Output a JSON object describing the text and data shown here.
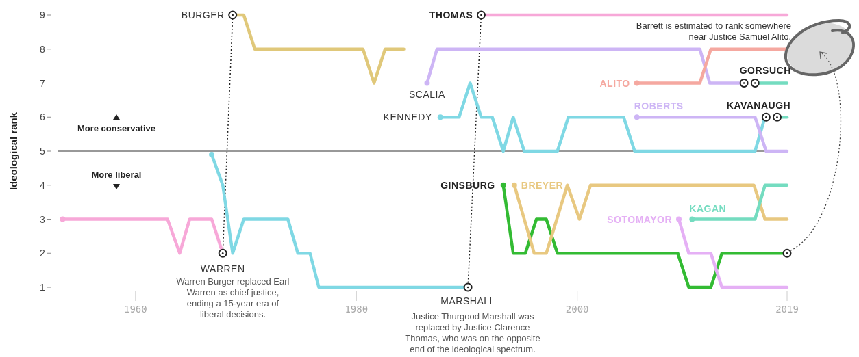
{
  "chart_data": {
    "type": "line",
    "ylabel": "Ideological rank",
    "xlim": [
      1953,
      2019
    ],
    "xticks": [
      1960,
      1980,
      2000,
      2019
    ],
    "ylim": [
      1,
      9
    ],
    "yticks": [
      1,
      2,
      3,
      4,
      5,
      6,
      7,
      8,
      9
    ],
    "grid": false,
    "line_style": "solid",
    "ref_lines": [
      {
        "axis": "y",
        "value": 5,
        "color": "#333333"
      }
    ],
    "annotations": [
      "More conservative",
      "More liberal",
      "Warren Burger replaced Earl Warren as chief justice, ending a 15-year era of liberal decisions.",
      "Justice Thurgood Marshall was replaced by Justice Clarence Thomas, who was on the opposite end of the ideological spectrum.",
      "Barrett is estimated to rank somewhere near Justice Samuel Alito."
    ],
    "series": [
      {
        "name": "WARREN",
        "color": "#f7a8d8",
        "x": [
          1953.4,
          1962.9,
          1964.0,
          1964.9,
          1966.9,
          1967.9
        ],
        "values": [
          3,
          3,
          2,
          3,
          3,
          2
        ]
      },
      {
        "name": "BURGER",
        "color": "#e0c87a",
        "x": [
          1968.8,
          1969.8,
          1970.8,
          1980.6,
          1981.6,
          1982.6,
          1984.3
        ],
        "values": [
          9,
          9,
          8,
          8,
          7,
          8,
          8
        ]
      },
      {
        "name": "MARSHALL",
        "color": "#7fd8e4",
        "x": [
          1966.9,
          1967.9,
          1968.8,
          1969.8,
          1973.8,
          1974.7,
          1975.8,
          1976.6,
          1990.1
        ],
        "values": [
          4.9,
          4,
          2,
          3,
          3,
          2,
          2,
          1,
          1
        ]
      },
      {
        "name": "THOMAS",
        "color": "#f7a8d8",
        "x": [
          1991.3,
          2019
        ],
        "values": [
          9,
          9
        ]
      },
      {
        "name": "SCALIA",
        "color": "#cdb5f5",
        "x": [
          1986.4,
          1987.3,
          2011.1,
          2012.0,
          2015.1
        ],
        "values": [
          7,
          8,
          8,
          7,
          7
        ]
      },
      {
        "name": "KENNEDY",
        "color": "#7fd8e4",
        "x": [
          1987.6,
          1989.3,
          1990.3,
          1991.3,
          1992.3,
          1993.3,
          1994.2,
          1995.2,
          1998.2,
          1999.2,
          2004.2,
          2005.2,
          2016.1,
          2017.0,
          2017.1
        ],
        "values": [
          6,
          6,
          7,
          6,
          6,
          5,
          6,
          5,
          5,
          6,
          6,
          5,
          5,
          6,
          6
        ]
      },
      {
        "name": "ALITO",
        "color": "#f5a8a0",
        "x": [
          2005.4,
          2011.1,
          2012.1,
          2019
        ],
        "values": [
          7,
          7,
          8,
          8
        ]
      },
      {
        "name": "GORSUCH",
        "color": "#74dcc0",
        "x": [
          2016.1,
          2019
        ],
        "values": [
          7,
          7
        ]
      },
      {
        "name": "ROBERTS",
        "color": "#cdb5f5",
        "x": [
          2005.4,
          2016.1,
          2017.1,
          2019
        ],
        "values": [
          6,
          6,
          5,
          5
        ]
      },
      {
        "name": "KAVANAUGH",
        "color": "#74dcc0",
        "x": [
          2018.1,
          2019
        ],
        "values": [
          6,
          6
        ]
      },
      {
        "name": "GINSBURG",
        "color": "#33bb33",
        "x": [
          1993.3,
          1994.2,
          1995.3,
          1996.3,
          1997.2,
          1998.2,
          2009.1,
          2010.1,
          2012.1,
          2013.1,
          2019
        ],
        "values": [
          4,
          2,
          2,
          3,
          3,
          2,
          2,
          1,
          1,
          2,
          2
        ]
      },
      {
        "name": "BREYER",
        "color": "#e8c880",
        "x": [
          1994.3,
          1996.1,
          1997.2,
          1999.1,
          2000.2,
          2001.2,
          2016.0,
          2017.0,
          2019
        ],
        "values": [
          4,
          2,
          2,
          4,
          3,
          4,
          4,
          3,
          3
        ]
      },
      {
        "name": "SOTOMAYOR",
        "color": "#e5b0f5",
        "x": [
          2009.2,
          2010.1,
          2012.1,
          2013.1,
          2019
        ],
        "values": [
          3,
          2,
          2,
          1,
          1
        ]
      },
      {
        "name": "KAGAN",
        "color": "#74dcc0",
        "x": [
          2010.4,
          2016.1,
          2017.0,
          2019
        ],
        "values": [
          3,
          3,
          4,
          4
        ]
      }
    ]
  }
}
